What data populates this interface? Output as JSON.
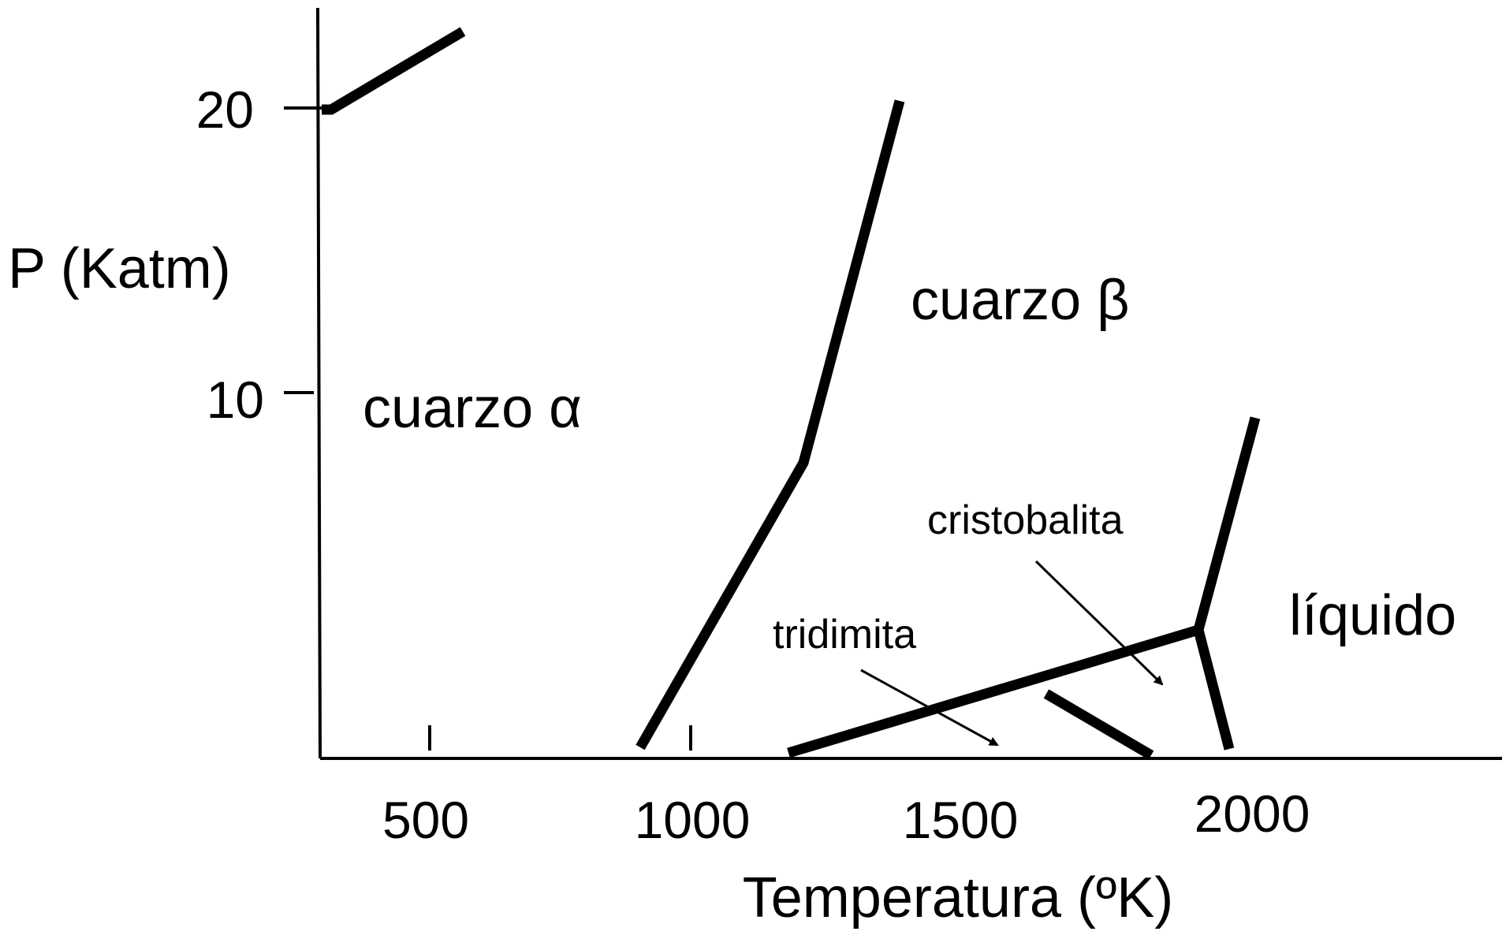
{
  "axes": {
    "ylabel": "P (Katm)",
    "xlabel": "Temperatura (ºK)",
    "yticks": [
      "20",
      "10"
    ],
    "xticks": [
      "500",
      "1000",
      "1500",
      "2000"
    ]
  },
  "regions": {
    "alpha_quartz": "cuarzo α",
    "beta_quartz": "cuarzo β",
    "liquid": "líquido"
  },
  "annotations": {
    "tridymite": "tridimita",
    "cristobalite": "cristobalita"
  },
  "colors": {
    "ink": "#000000",
    "background": "#ffffff"
  }
}
